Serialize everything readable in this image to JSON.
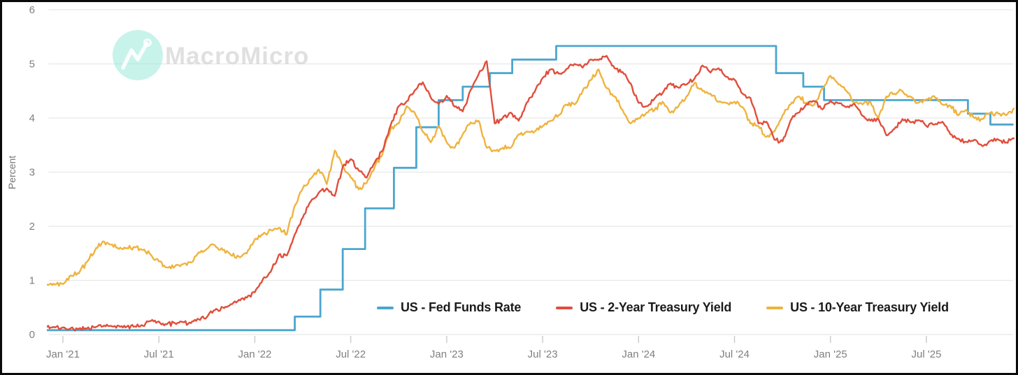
{
  "watermark": {
    "brand": "MacroMicro"
  },
  "chart_data": {
    "type": "line",
    "title": "",
    "xlabel": "",
    "ylabel": "Percent",
    "ylim": [
      0,
      6
    ],
    "yticks": [
      0,
      1,
      2,
      3,
      4,
      5,
      6
    ],
    "grid": "horizontal",
    "legend_position": "bottom-inside",
    "x_unit": "months since Jan 2021",
    "xlim_months": [
      -0.9,
      59.4
    ],
    "xticks": [
      {
        "pos": 0,
        "label": "Jan '21"
      },
      {
        "pos": 6,
        "label": "Jul '21"
      },
      {
        "pos": 12,
        "label": "Jan '22"
      },
      {
        "pos": 18,
        "label": "Jul '22"
      },
      {
        "pos": 24,
        "label": "Jan '23"
      },
      {
        "pos": 30,
        "label": "Jul '23"
      },
      {
        "pos": 36,
        "label": "Jan '24"
      },
      {
        "pos": 42,
        "label": "Jul '24"
      },
      {
        "pos": 48,
        "label": "Jan '25"
      },
      {
        "pos": 54,
        "label": "Jul '25"
      }
    ],
    "series": [
      {
        "name": "US - Fed Funds Rate",
        "color": "#4BA6CE",
        "style": "step",
        "width": 2.8,
        "points": [
          [
            -1.0,
            0.08
          ],
          [
            14.5,
            0.33
          ],
          [
            16.1,
            0.83
          ],
          [
            17.5,
            1.58
          ],
          [
            18.9,
            2.33
          ],
          [
            20.7,
            3.08
          ],
          [
            22.1,
            3.83
          ],
          [
            23.5,
            4.33
          ],
          [
            25.0,
            4.58
          ],
          [
            26.7,
            4.83
          ],
          [
            28.1,
            5.08
          ],
          [
            30.85,
            5.33
          ],
          [
            44.6,
            4.83
          ],
          [
            46.3,
            4.58
          ],
          [
            47.6,
            4.33
          ],
          [
            56.6,
            4.08
          ],
          [
            58.0,
            3.88
          ],
          [
            59.4,
            3.88
          ]
        ]
      },
      {
        "name": "US - 10-Year Treasury Yield",
        "color": "#EFB33E",
        "style": "line",
        "width": 2.4,
        "noise": 0.05,
        "encoding": "uniform",
        "t0": -1.0,
        "dt": 0.5,
        "values": [
          0.92,
          0.92,
          0.93,
          1.09,
          1.13,
          1.34,
          1.55,
          1.72,
          1.66,
          1.58,
          1.6,
          1.61,
          1.56,
          1.47,
          1.35,
          1.24,
          1.26,
          1.3,
          1.33,
          1.52,
          1.58,
          1.65,
          1.56,
          1.47,
          1.44,
          1.5,
          1.76,
          1.85,
          1.93,
          1.97,
          1.85,
          2.38,
          2.7,
          2.88,
          3.05,
          2.78,
          3.4,
          3.1,
          2.9,
          2.68,
          2.8,
          3.1,
          3.35,
          3.8,
          3.9,
          4.22,
          4.1,
          3.75,
          3.55,
          3.85,
          3.55,
          3.45,
          3.7,
          3.92,
          3.95,
          3.45,
          3.4,
          3.45,
          3.45,
          3.7,
          3.75,
          3.75,
          3.85,
          3.95,
          4.05,
          4.25,
          4.25,
          4.5,
          4.7,
          4.9,
          4.55,
          4.4,
          4.15,
          3.9,
          4.0,
          4.1,
          4.15,
          4.3,
          4.1,
          4.22,
          4.4,
          4.65,
          4.5,
          4.45,
          4.3,
          4.28,
          4.3,
          4.2,
          3.9,
          3.85,
          3.65,
          3.75,
          4.05,
          4.25,
          4.4,
          4.28,
          4.25,
          4.55,
          4.78,
          4.62,
          4.5,
          4.28,
          4.25,
          4.3,
          4.0,
          4.4,
          4.45,
          4.5,
          4.4,
          4.28,
          4.35,
          4.4,
          4.25,
          4.23,
          4.05,
          4.15,
          4.0,
          3.98,
          4.1,
          4.08,
          4.05,
          4.18
        ]
      },
      {
        "name": "US - 2-Year Treasury Yield",
        "color": "#E04E3B",
        "style": "line",
        "width": 2.4,
        "noise": 0.045,
        "encoding": "uniform",
        "t0": -1.0,
        "dt": 0.5,
        "values": [
          0.14,
          0.13,
          0.13,
          0.12,
          0.11,
          0.11,
          0.13,
          0.15,
          0.16,
          0.16,
          0.15,
          0.15,
          0.16,
          0.25,
          0.24,
          0.19,
          0.21,
          0.23,
          0.21,
          0.28,
          0.32,
          0.45,
          0.5,
          0.56,
          0.64,
          0.68,
          0.78,
          1.02,
          1.16,
          1.47,
          1.46,
          1.85,
          2.16,
          2.46,
          2.62,
          2.7,
          2.56,
          3.1,
          3.24,
          3.03,
          2.9,
          3.18,
          3.4,
          3.87,
          4.22,
          4.31,
          4.51,
          4.66,
          4.38,
          4.26,
          4.41,
          4.21,
          4.12,
          4.52,
          4.81,
          5.05,
          3.9,
          4.0,
          4.1,
          3.95,
          4.28,
          4.48,
          4.74,
          4.9,
          4.82,
          4.91,
          5.0,
          4.93,
          5.08,
          5.07,
          5.15,
          4.92,
          4.85,
          4.64,
          4.28,
          4.22,
          4.36,
          4.46,
          4.64,
          4.56,
          4.62,
          4.73,
          4.97,
          4.84,
          4.92,
          4.76,
          4.71,
          4.45,
          4.37,
          3.9,
          3.93,
          3.6,
          3.57,
          3.95,
          4.1,
          4.26,
          4.31,
          4.16,
          4.32,
          4.27,
          4.2,
          4.26,
          4.04,
          3.95,
          3.98,
          3.68,
          3.8,
          3.98,
          3.92,
          3.96,
          3.85,
          3.88,
          3.93,
          3.7,
          3.62,
          3.56,
          3.6,
          3.48,
          3.58,
          3.6,
          3.55,
          3.62
        ]
      }
    ]
  },
  "legend_order": [
    0,
    2,
    1
  ]
}
